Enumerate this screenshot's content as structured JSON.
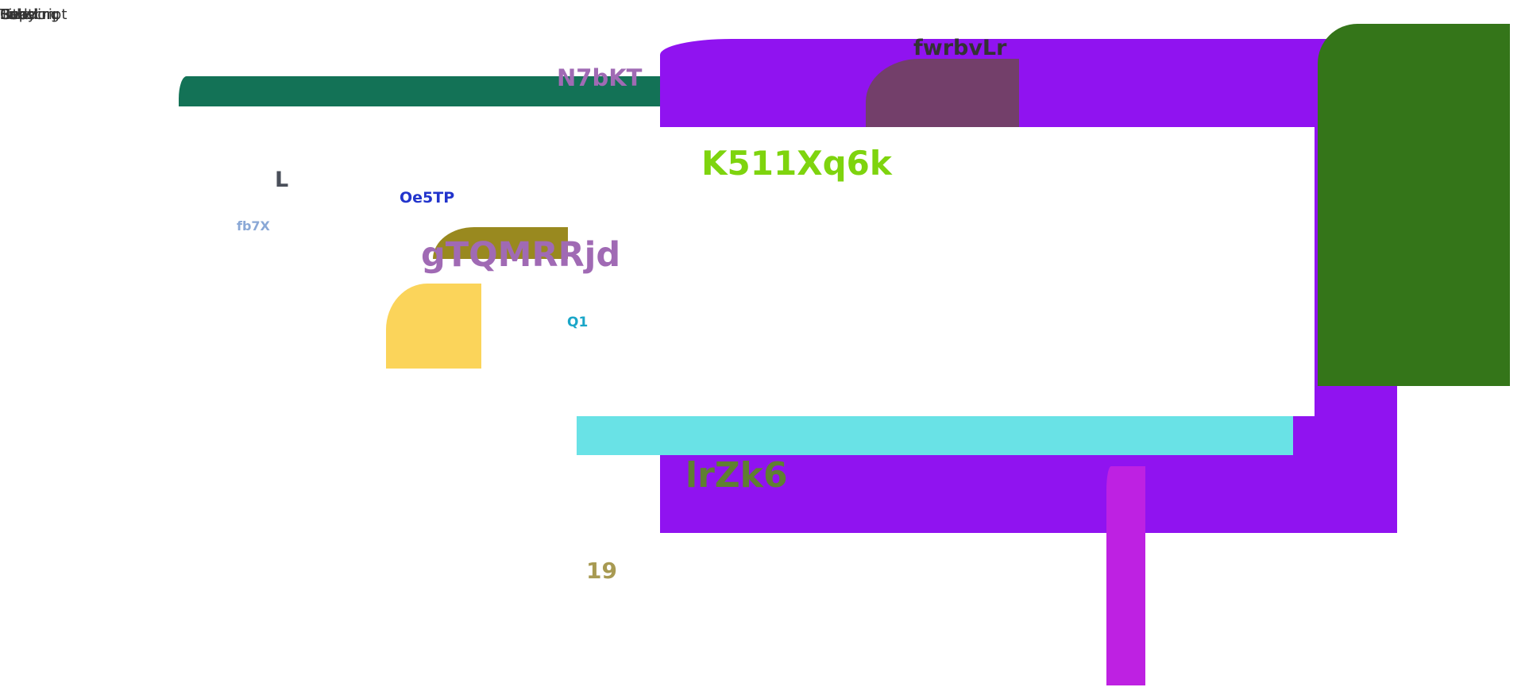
{
  "colors": {
    "purple": "#9013f0",
    "green_dark": "#347519",
    "teal_bar": "#137256",
    "mauve": "#733f6a",
    "olive": "#99891f",
    "yellow": "#fbd45a",
    "cyan": "#69e2e6",
    "magenta": "#be21e2",
    "white": "#ffffff"
  },
  "top_text": [
    "Heading",
    "Body",
    "Subscript",
    "Title",
    "Label",
    "Caption"
  ],
  "labels": {
    "n7bkt": "N7bKT",
    "fwrbvlr": "fwrbvLr",
    "k511xq6k": "K511Xq6k",
    "l": "L",
    "oe5tp": "Oe5TP",
    "fb7x": "fb7X",
    "gtqmrrjd": "gTQMRRjd",
    "q1": "Q1",
    "lrzk6": "lrZk6",
    "n19": "19"
  }
}
